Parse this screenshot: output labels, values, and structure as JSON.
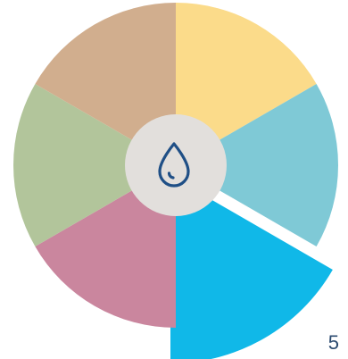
{
  "wheel": {
    "segments": [
      {
        "name": "segment-top-right",
        "color": "#fbdb8a",
        "selected": false
      },
      {
        "name": "segment-right",
        "color": "#7fc9d6",
        "selected": false
      },
      {
        "name": "segment-bottom-right",
        "color": "#10b8e8",
        "selected": true
      },
      {
        "name": "segment-bottom-left",
        "color": "#ca869e",
        "selected": false
      },
      {
        "name": "segment-left",
        "color": "#b2c59b",
        "selected": false
      },
      {
        "name": "segment-top-left",
        "color": "#d1ae8e",
        "selected": false
      }
    ],
    "center_color": "#e2dfdc",
    "center_icon": "water-drop-icon",
    "icon_color": "#1f4f86"
  },
  "step_number": "5"
}
